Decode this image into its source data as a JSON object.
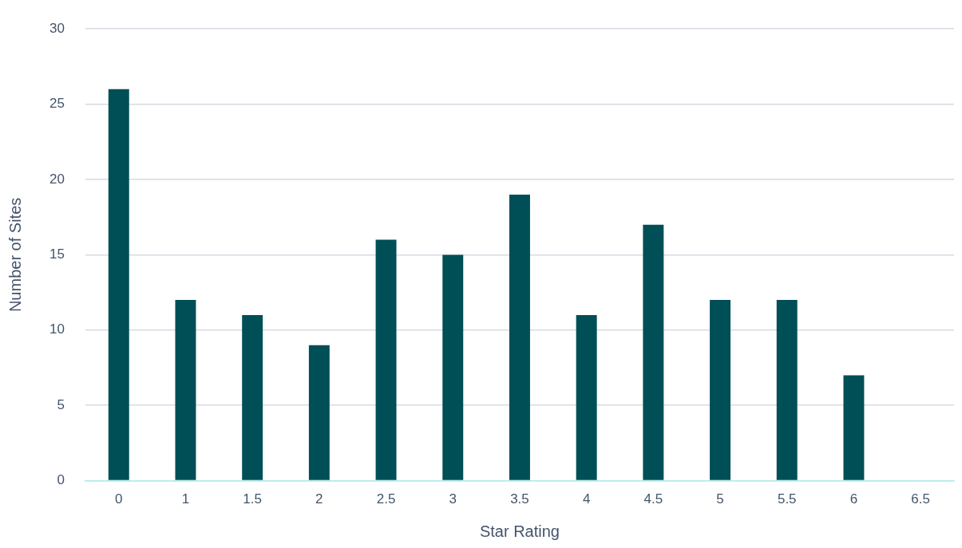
{
  "chart_data": {
    "type": "bar",
    "xlabel": "Star Rating",
    "ylabel": "Number of Sites",
    "categories": [
      "0",
      "1",
      "1.5",
      "2",
      "2.5",
      "3",
      "3.5",
      "4",
      "4.5",
      "5",
      "5.5",
      "6",
      "6.5"
    ],
    "values": [
      26,
      12,
      11,
      9,
      16,
      15,
      19,
      11,
      17,
      12,
      12,
      7,
      null
    ],
    "color": "#004f56",
    "ylim": [
      0,
      30
    ],
    "yticks": [
      0,
      5,
      10,
      15,
      20,
      25,
      30
    ],
    "grid": "y"
  }
}
